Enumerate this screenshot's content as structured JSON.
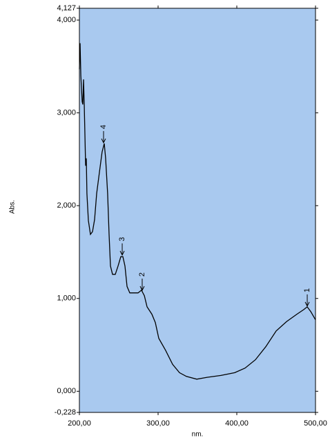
{
  "chart_data": {
    "type": "line",
    "xlabel": "nm.",
    "ylabel": "Abs.",
    "xlim": [
      200,
      500
    ],
    "ylim": [
      -0.228,
      4.127
    ],
    "xticks": [
      {
        "value": 200,
        "label": "200,00"
      },
      {
        "value": 300,
        "label": "300,00"
      },
      {
        "value": 400,
        "label": "400,00"
      },
      {
        "value": 500,
        "label": "500,00"
      }
    ],
    "yticks": [
      {
        "value": -0.228,
        "label": "-0,228"
      },
      {
        "value": 0,
        "label": "0,000"
      },
      {
        "value": 1,
        "label": "1,000"
      },
      {
        "value": 2,
        "label": "2,000"
      },
      {
        "value": 3,
        "label": "3,000"
      },
      {
        "value": 4,
        "label": "4,000"
      },
      {
        "value": 4.127,
        "label": "4,127"
      }
    ],
    "background": "#a9c9ef",
    "series": [
      {
        "color": "#000000",
        "x": [
          200.0,
          200.9,
          201.8,
          203.5,
          204.4,
          205.3,
          206.1,
          207.9,
          208.8,
          209.6,
          211.4,
          214.0,
          216.7,
          219.3,
          221.9,
          225.4,
          228.9,
          231.6,
          233.3,
          235.9,
          237.7,
          239.5,
          242.1,
          245.6,
          249.1,
          252.6,
          255.3,
          257.9,
          260.5,
          264.0,
          269.3,
          274.6,
          278.9,
          282.5,
          286.0,
          292.1,
          296.5,
          300.9,
          309.6,
          318.4,
          327.2,
          336.0,
          349.1,
          362.3,
          379.8,
          397.4,
          410.5,
          423.7,
          436.8,
          450.0,
          463.2,
          476.3,
          485.1,
          489.5,
          493.9,
          500.0
        ],
        "values": [
          3.47,
          3.75,
          3.4,
          3.12,
          3.09,
          3.36,
          3.1,
          2.43,
          2.51,
          2.13,
          1.84,
          1.69,
          1.72,
          1.85,
          2.13,
          2.36,
          2.58,
          2.67,
          2.51,
          2.13,
          1.69,
          1.35,
          1.26,
          1.26,
          1.35,
          1.45,
          1.45,
          1.35,
          1.13,
          1.06,
          1.06,
          1.06,
          1.09,
          1.03,
          0.91,
          0.83,
          0.74,
          0.57,
          0.44,
          0.29,
          0.2,
          0.16,
          0.13,
          0.15,
          0.17,
          0.2,
          0.25,
          0.34,
          0.48,
          0.65,
          0.75,
          0.83,
          0.88,
          0.91,
          0.86,
          0.77
        ]
      }
    ],
    "peaks": [
      {
        "label": "1",
        "x": 489.5,
        "y": 0.91
      },
      {
        "label": "2",
        "x": 279.8,
        "y": 1.08
      },
      {
        "label": "3",
        "x": 254.4,
        "y": 1.46
      },
      {
        "label": "4",
        "x": 230.7,
        "y": 2.67
      }
    ]
  }
}
